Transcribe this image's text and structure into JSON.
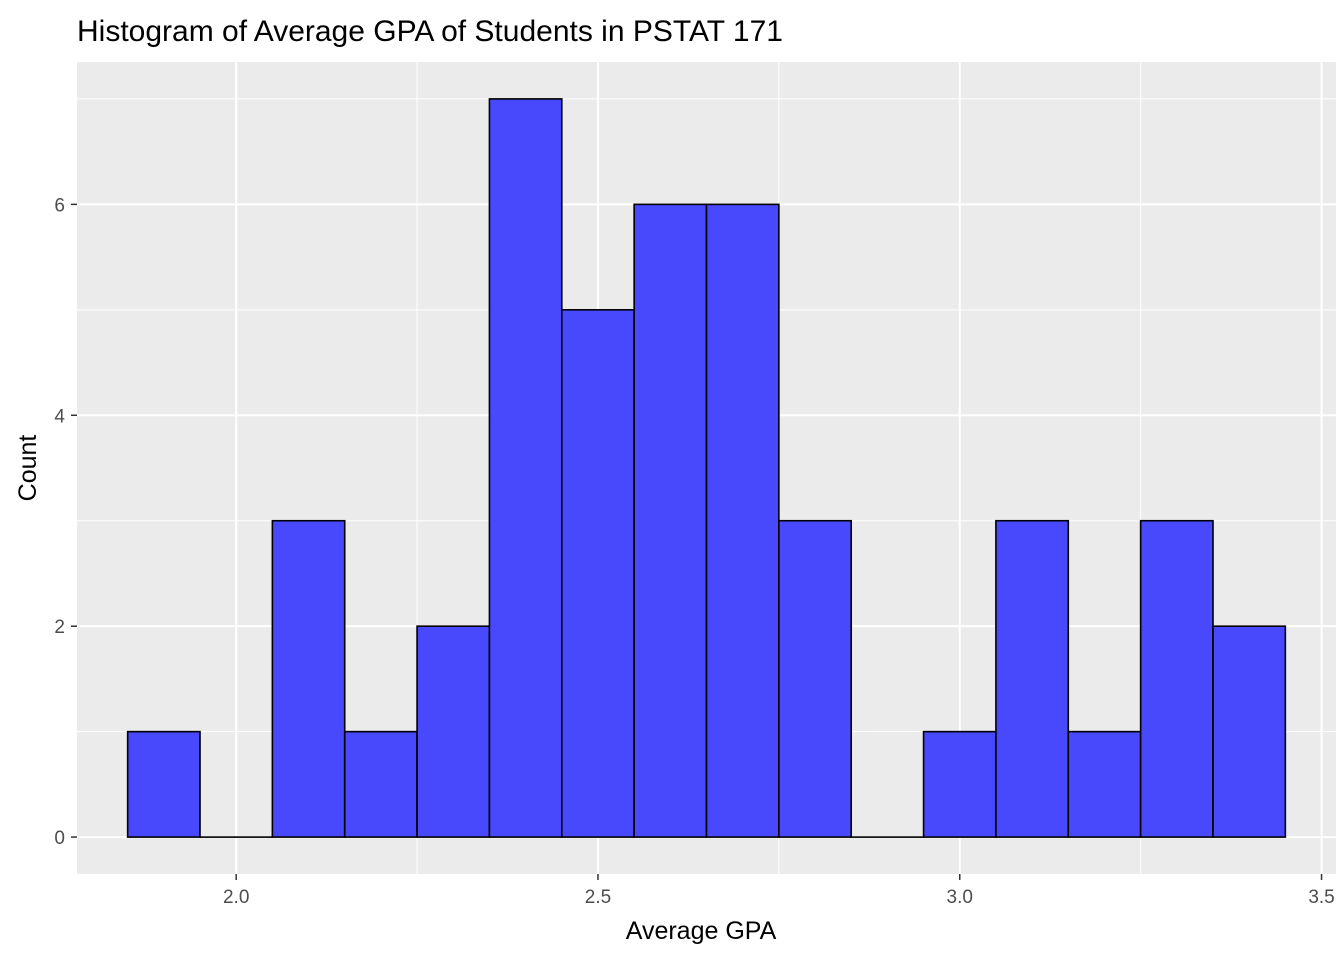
{
  "chart_data": {
    "type": "bar",
    "title": "Histogram of Average GPA of Students in PSTAT 171",
    "xlabel": "Average GPA",
    "ylabel": "Count",
    "xlim": [
      1.78,
      3.52
    ],
    "ylim": [
      -0.35,
      7.35
    ],
    "x_ticks": [
      2.0,
      2.5,
      3.0,
      3.5
    ],
    "x_tick_labels": [
      "2.0",
      "2.5",
      "3.0",
      "3.5"
    ],
    "y_ticks": [
      0,
      2,
      4,
      6
    ],
    "y_tick_labels": [
      "0",
      "2",
      "4",
      "6"
    ],
    "bin_width": 0.1,
    "bins": [
      {
        "start": 1.85,
        "end": 1.95,
        "count": 1
      },
      {
        "start": 1.95,
        "end": 2.05,
        "count": 0
      },
      {
        "start": 2.05,
        "end": 2.15,
        "count": 3
      },
      {
        "start": 2.15,
        "end": 2.25,
        "count": 1
      },
      {
        "start": 2.25,
        "end": 2.35,
        "count": 2
      },
      {
        "start": 2.35,
        "end": 2.45,
        "count": 7
      },
      {
        "start": 2.45,
        "end": 2.55,
        "count": 5
      },
      {
        "start": 2.55,
        "end": 2.65,
        "count": 6
      },
      {
        "start": 2.65,
        "end": 2.75,
        "count": 6
      },
      {
        "start": 2.75,
        "end": 2.85,
        "count": 3
      },
      {
        "start": 2.85,
        "end": 2.95,
        "count": 0
      },
      {
        "start": 2.95,
        "end": 3.05,
        "count": 1
      },
      {
        "start": 3.05,
        "end": 3.15,
        "count": 3
      },
      {
        "start": 3.15,
        "end": 3.25,
        "count": 1
      },
      {
        "start": 3.25,
        "end": 3.35,
        "count": 3
      },
      {
        "start": 3.35,
        "end": 3.45,
        "count": 2
      }
    ],
    "grid": true,
    "colors": {
      "bar_fill": "#4848fc",
      "bar_outline": "#000000",
      "panel_background": "#ebebeb",
      "grid_major": "#ffffff",
      "tick_label": "#4d4d4d"
    }
  }
}
